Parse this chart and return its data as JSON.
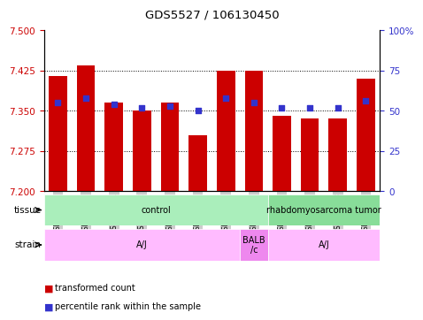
{
  "title": "GDS5527 / 106130450",
  "samples": [
    "GSM738156",
    "GSM738160",
    "GSM738161",
    "GSM738162",
    "GSM738164",
    "GSM738165",
    "GSM738166",
    "GSM738163",
    "GSM738155",
    "GSM738157",
    "GSM738158",
    "GSM738159"
  ],
  "red_values": [
    7.415,
    7.435,
    7.365,
    7.35,
    7.365,
    7.305,
    7.425,
    7.425,
    7.34,
    7.335,
    7.335,
    7.41
  ],
  "blue_values": [
    55,
    58,
    54,
    52,
    53,
    50,
    58,
    55,
    52,
    52,
    52,
    56
  ],
  "ylim_left": [
    7.2,
    7.5
  ],
  "ylim_right": [
    0,
    100
  ],
  "yticks_left": [
    7.2,
    7.275,
    7.35,
    7.425,
    7.5
  ],
  "yticks_right": [
    0,
    25,
    50,
    75,
    100
  ],
  "bar_color": "#cc0000",
  "dot_color": "#3333cc",
  "bar_width": 0.65,
  "tissue_groups": [
    {
      "label": "control",
      "start": 0,
      "end": 8,
      "color": "#aaeebb"
    },
    {
      "label": "rhabdomyosarcoma tumor",
      "start": 8,
      "end": 12,
      "color": "#88dd99"
    }
  ],
  "strain_groups": [
    {
      "label": "A/J",
      "start": 0,
      "end": 7,
      "color": "#ffbbff"
    },
    {
      "label": "BALB\n/c",
      "start": 7,
      "end": 8,
      "color": "#ee88ee"
    },
    {
      "label": "A/J",
      "start": 8,
      "end": 12,
      "color": "#ffbbff"
    }
  ],
  "tick_color_left": "#cc0000",
  "tick_color_right": "#3333cc",
  "xlabel_bg": "#cccccc",
  "tissue_label": "tissue",
  "strain_label": "strain",
  "legend_items": [
    {
      "color": "#cc0000",
      "label": "transformed count"
    },
    {
      "color": "#3333cc",
      "label": "percentile rank within the sample"
    }
  ]
}
